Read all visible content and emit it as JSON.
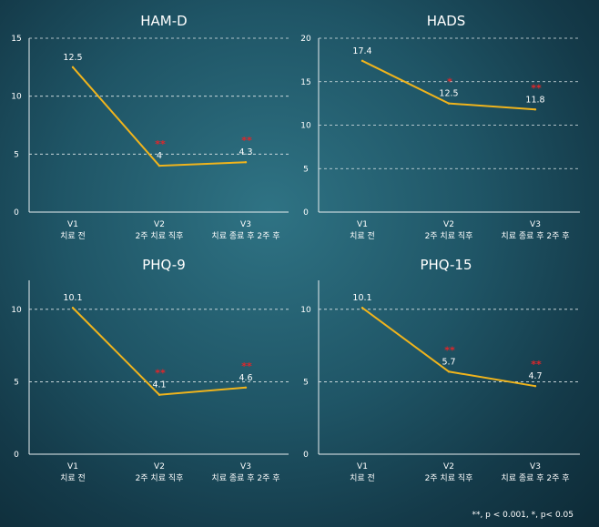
{
  "chart_data": [
    {
      "type": "line",
      "title": "HAM-D",
      "categories": [
        [
          "V1",
          "치료 전"
        ],
        [
          "V2",
          "2주 치료 직후"
        ],
        [
          "V3",
          "치료 종료 후 2주 후"
        ]
      ],
      "values": [
        12.5,
        4,
        4.3
      ],
      "value_labels": [
        "12.5",
        "4",
        "4.3"
      ],
      "significance": [
        "",
        "**",
        "**"
      ],
      "ylim": [
        0,
        15
      ],
      "yticks": [
        0,
        5,
        10,
        15
      ],
      "grid": true,
      "color": "#f0b41c"
    },
    {
      "type": "line",
      "title": "HADS",
      "categories": [
        [
          "V1",
          "치료 전"
        ],
        [
          "V2",
          "2주 치료 직후"
        ],
        [
          "V3",
          "치료 종료 후 2주 후"
        ]
      ],
      "values": [
        17.4,
        12.5,
        11.8
      ],
      "value_labels": [
        "17.4",
        "12.5",
        "11.8"
      ],
      "significance": [
        "",
        "*",
        "**"
      ],
      "ylim": [
        0,
        20
      ],
      "yticks": [
        0,
        5,
        10,
        15,
        20
      ],
      "grid": true,
      "color": "#f0b41c"
    },
    {
      "type": "line",
      "title": "PHQ-9",
      "categories": [
        [
          "V1",
          "치료 전"
        ],
        [
          "V2",
          "2주 치료 직후"
        ],
        [
          "V3",
          "치료 종료 후 2주 후"
        ]
      ],
      "values": [
        10.1,
        4.1,
        4.6
      ],
      "value_labels": [
        "10.1",
        "4.1",
        "4.6"
      ],
      "significance": [
        "",
        "**",
        "**"
      ],
      "ylim": [
        0,
        12
      ],
      "yticks": [
        0,
        5,
        10
      ],
      "grid": true,
      "color": "#f0b41c"
    },
    {
      "type": "line",
      "title": "PHQ-15",
      "categories": [
        [
          "V1",
          "치료 전"
        ],
        [
          "V2",
          "2주 치료 직후"
        ],
        [
          "V3",
          "치료 종료 후 2주 후"
        ]
      ],
      "values": [
        10.1,
        5.7,
        4.7
      ],
      "value_labels": [
        "10.1",
        "5.7",
        "4.7"
      ],
      "significance": [
        "",
        "**",
        "**"
      ],
      "ylim": [
        0,
        12
      ],
      "yticks": [
        0,
        5,
        10
      ],
      "grid": true,
      "color": "#f0b41c"
    }
  ],
  "footnote": "**, p < 0.001, *, p< 0.05"
}
